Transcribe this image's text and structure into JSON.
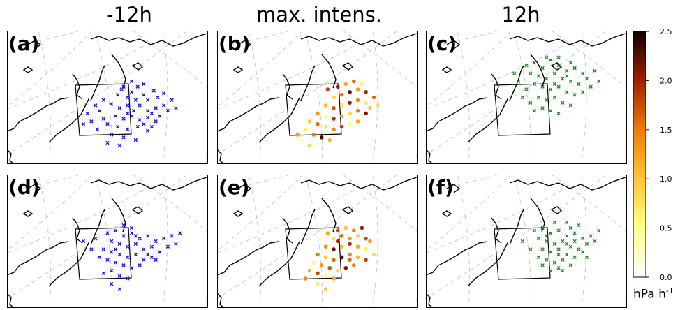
{
  "chart_data": {
    "type": "scatter",
    "column_titles": [
      "-12h",
      "max. intens.",
      "12h"
    ],
    "panels": [
      {
        "label": "(a)",
        "kind": "cross",
        "color": "#1010d8",
        "points": [
          [
            0.55,
            0.48
          ],
          [
            0.57,
            0.44
          ],
          [
            0.6,
            0.5
          ],
          [
            0.62,
            0.46
          ],
          [
            0.65,
            0.42
          ],
          [
            0.68,
            0.48
          ],
          [
            0.7,
            0.52
          ],
          [
            0.73,
            0.45
          ],
          [
            0.75,
            0.5
          ],
          [
            0.78,
            0.47
          ],
          [
            0.52,
            0.55
          ],
          [
            0.56,
            0.58
          ],
          [
            0.6,
            0.56
          ],
          [
            0.63,
            0.6
          ],
          [
            0.66,
            0.56
          ],
          [
            0.7,
            0.6
          ],
          [
            0.74,
            0.58
          ],
          [
            0.78,
            0.56
          ],
          [
            0.8,
            0.6
          ],
          [
            0.54,
            0.64
          ],
          [
            0.58,
            0.66
          ],
          [
            0.62,
            0.64
          ],
          [
            0.66,
            0.67
          ],
          [
            0.7,
            0.65
          ],
          [
            0.74,
            0.68
          ],
          [
            0.5,
            0.7
          ],
          [
            0.55,
            0.72
          ],
          [
            0.6,
            0.74
          ],
          [
            0.65,
            0.72
          ],
          [
            0.7,
            0.75
          ],
          [
            0.46,
            0.6
          ],
          [
            0.48,
            0.66
          ],
          [
            0.52,
            0.78
          ],
          [
            0.58,
            0.8
          ],
          [
            0.64,
            0.82
          ],
          [
            0.42,
            0.68
          ],
          [
            0.45,
            0.74
          ],
          [
            0.5,
            0.84
          ],
          [
            0.56,
            0.86
          ],
          [
            0.68,
            0.4
          ],
          [
            0.62,
            0.38
          ],
          [
            0.58,
            0.42
          ],
          [
            0.72,
            0.62
          ],
          [
            0.76,
            0.64
          ],
          [
            0.82,
            0.52
          ],
          [
            0.84,
            0.58
          ],
          [
            0.48,
            0.52
          ],
          [
            0.44,
            0.56
          ],
          [
            0.4,
            0.62
          ],
          [
            0.38,
            0.7
          ],
          [
            0.6,
            0.62
          ],
          [
            0.64,
            0.52
          ],
          [
            0.68,
            0.7
          ],
          [
            0.72,
            0.72
          ]
        ]
      },
      {
        "label": "(b)",
        "kind": "dot",
        "cmap": true,
        "points": [
          [
            0.55,
            0.44,
            1.8
          ],
          [
            0.6,
            0.42,
            2.1
          ],
          [
            0.64,
            0.4,
            1.2
          ],
          [
            0.68,
            0.38,
            1.6
          ],
          [
            0.72,
            0.4,
            0.6
          ],
          [
            0.58,
            0.5,
            0.9
          ],
          [
            0.62,
            0.48,
            1.5
          ],
          [
            0.66,
            0.46,
            2.2
          ],
          [
            0.7,
            0.44,
            1.3
          ],
          [
            0.74,
            0.46,
            1.9
          ],
          [
            0.54,
            0.56,
            1.1
          ],
          [
            0.58,
            0.58,
            1.7
          ],
          [
            0.62,
            0.56,
            0.8
          ],
          [
            0.66,
            0.54,
            2.0
          ],
          [
            0.7,
            0.52,
            1.4
          ],
          [
            0.74,
            0.54,
            0.7
          ],
          [
            0.78,
            0.5,
            1.6
          ],
          [
            0.5,
            0.62,
            1.3
          ],
          [
            0.54,
            0.64,
            0.5
          ],
          [
            0.58,
            0.66,
            1.9
          ],
          [
            0.62,
            0.64,
            1.2
          ],
          [
            0.66,
            0.62,
            0.9
          ],
          [
            0.7,
            0.6,
            1.5
          ],
          [
            0.74,
            0.62,
            2.1
          ],
          [
            0.46,
            0.68,
            1.0
          ],
          [
            0.5,
            0.7,
            1.6
          ],
          [
            0.54,
            0.72,
            0.8
          ],
          [
            0.58,
            0.74,
            1.4
          ],
          [
            0.62,
            0.72,
            1.8
          ],
          [
            0.66,
            0.7,
            0.6
          ],
          [
            0.7,
            0.68,
            1.2
          ],
          [
            0.44,
            0.74,
            0.7
          ],
          [
            0.48,
            0.78,
            1.5
          ],
          [
            0.52,
            0.8,
            2.3
          ],
          [
            0.56,
            0.82,
            1.1
          ],
          [
            0.42,
            0.82,
            0.4
          ],
          [
            0.46,
            0.86,
            0.9
          ],
          [
            0.4,
            0.78,
            1.3
          ],
          [
            0.76,
            0.58,
            1.0
          ],
          [
            0.8,
            0.56,
            0.8
          ]
        ]
      },
      {
        "label": "(c)",
        "kind": "cross",
        "color": "#138a13",
        "points": [
          [
            0.5,
            0.26
          ],
          [
            0.54,
            0.24
          ],
          [
            0.58,
            0.28
          ],
          [
            0.62,
            0.22
          ],
          [
            0.66,
            0.26
          ],
          [
            0.7,
            0.3
          ],
          [
            0.74,
            0.28
          ],
          [
            0.78,
            0.32
          ],
          [
            0.52,
            0.32
          ],
          [
            0.56,
            0.34
          ],
          [
            0.6,
            0.36
          ],
          [
            0.64,
            0.32
          ],
          [
            0.68,
            0.36
          ],
          [
            0.72,
            0.38
          ],
          [
            0.76,
            0.4
          ],
          [
            0.8,
            0.36
          ],
          [
            0.82,
            0.42
          ],
          [
            0.54,
            0.4
          ],
          [
            0.58,
            0.42
          ],
          [
            0.62,
            0.44
          ],
          [
            0.66,
            0.42
          ],
          [
            0.7,
            0.46
          ],
          [
            0.74,
            0.48
          ],
          [
            0.78,
            0.46
          ],
          [
            0.56,
            0.5
          ],
          [
            0.6,
            0.52
          ],
          [
            0.64,
            0.5
          ],
          [
            0.68,
            0.54
          ],
          [
            0.72,
            0.56
          ],
          [
            0.5,
            0.44
          ],
          [
            0.46,
            0.38
          ],
          [
            0.44,
            0.32
          ],
          [
            0.58,
            0.58
          ],
          [
            0.62,
            0.6
          ],
          [
            0.66,
            0.62
          ],
          [
            0.54,
            0.6
          ],
          [
            0.6,
            0.2
          ],
          [
            0.66,
            0.2
          ],
          [
            0.72,
            0.24
          ],
          [
            0.84,
            0.3
          ],
          [
            0.86,
            0.38
          ],
          [
            0.48,
            0.5
          ],
          [
            0.52,
            0.54
          ],
          [
            0.64,
            0.4
          ],
          [
            0.7,
            0.34
          ]
        ]
      },
      {
        "label": "(d)",
        "kind": "cross",
        "color": "#1010d8",
        "points": [
          [
            0.5,
            0.44
          ],
          [
            0.54,
            0.42
          ],
          [
            0.58,
            0.46
          ],
          [
            0.62,
            0.44
          ],
          [
            0.66,
            0.48
          ],
          [
            0.7,
            0.46
          ],
          [
            0.74,
            0.5
          ],
          [
            0.78,
            0.48
          ],
          [
            0.82,
            0.46
          ],
          [
            0.52,
            0.5
          ],
          [
            0.56,
            0.52
          ],
          [
            0.6,
            0.54
          ],
          [
            0.64,
            0.52
          ],
          [
            0.68,
            0.56
          ],
          [
            0.72,
            0.54
          ],
          [
            0.76,
            0.58
          ],
          [
            0.8,
            0.54
          ],
          [
            0.48,
            0.56
          ],
          [
            0.52,
            0.58
          ],
          [
            0.56,
            0.6
          ],
          [
            0.6,
            0.62
          ],
          [
            0.64,
            0.6
          ],
          [
            0.68,
            0.64
          ],
          [
            0.72,
            0.62
          ],
          [
            0.5,
            0.64
          ],
          [
            0.54,
            0.66
          ],
          [
            0.58,
            0.68
          ],
          [
            0.62,
            0.7
          ],
          [
            0.66,
            0.68
          ],
          [
            0.46,
            0.62
          ],
          [
            0.42,
            0.56
          ],
          [
            0.38,
            0.5
          ],
          [
            0.44,
            0.48
          ],
          [
            0.52,
            0.72
          ],
          [
            0.56,
            0.76
          ],
          [
            0.6,
            0.78
          ],
          [
            0.48,
            0.74
          ],
          [
            0.52,
            0.82
          ],
          [
            0.56,
            0.86
          ],
          [
            0.62,
            0.4
          ],
          [
            0.58,
            0.38
          ],
          [
            0.84,
            0.52
          ],
          [
            0.86,
            0.44
          ],
          [
            0.7,
            0.6
          ],
          [
            0.74,
            0.64
          ],
          [
            0.54,
            0.56
          ],
          [
            0.64,
            0.46
          ]
        ]
      },
      {
        "label": "(e)",
        "kind": "dot",
        "cmap": true,
        "points": [
          [
            0.55,
            0.44,
            1.2
          ],
          [
            0.6,
            0.42,
            1.8
          ],
          [
            0.64,
            0.4,
            1.0
          ],
          [
            0.68,
            0.42,
            1.5
          ],
          [
            0.72,
            0.4,
            2.0
          ],
          [
            0.58,
            0.48,
            0.8
          ],
          [
            0.62,
            0.46,
            1.6
          ],
          [
            0.66,
            0.48,
            1.3
          ],
          [
            0.7,
            0.46,
            0.9
          ],
          [
            0.74,
            0.48,
            1.7
          ],
          [
            0.54,
            0.54,
            1.4
          ],
          [
            0.58,
            0.56,
            2.2
          ],
          [
            0.62,
            0.54,
            1.1
          ],
          [
            0.66,
            0.52,
            1.9
          ],
          [
            0.7,
            0.54,
            1.2
          ],
          [
            0.74,
            0.56,
            0.7
          ],
          [
            0.5,
            0.6,
            1.5
          ],
          [
            0.54,
            0.62,
            1.0
          ],
          [
            0.58,
            0.64,
            1.6
          ],
          [
            0.62,
            0.62,
            2.3
          ],
          [
            0.66,
            0.6,
            1.4
          ],
          [
            0.7,
            0.62,
            1.1
          ],
          [
            0.74,
            0.64,
            1.8
          ],
          [
            0.48,
            0.66,
            0.6
          ],
          [
            0.52,
            0.68,
            1.3
          ],
          [
            0.56,
            0.7,
            1.7
          ],
          [
            0.6,
            0.72,
            0.9
          ],
          [
            0.64,
            0.7,
            2.1
          ],
          [
            0.68,
            0.68,
            1.5
          ],
          [
            0.46,
            0.72,
            1.1
          ],
          [
            0.5,
            0.74,
            1.8
          ],
          [
            0.54,
            0.76,
            0.5
          ],
          [
            0.58,
            0.78,
            1.2
          ],
          [
            0.5,
            0.82,
            0.7
          ],
          [
            0.54,
            0.86,
            1.0
          ],
          [
            0.44,
            0.78,
            1.4
          ],
          [
            0.76,
            0.5,
            1.3
          ],
          [
            0.78,
            0.6,
            0.8
          ],
          [
            0.6,
            0.5,
            2.0
          ],
          [
            0.66,
            0.64,
            1.6
          ]
        ]
      },
      {
        "label": "(f)",
        "kind": "cross",
        "color": "#138a13",
        "points": [
          [
            0.54,
            0.42
          ],
          [
            0.58,
            0.4
          ],
          [
            0.62,
            0.44
          ],
          [
            0.66,
            0.42
          ],
          [
            0.7,
            0.46
          ],
          [
            0.74,
            0.44
          ],
          [
            0.78,
            0.48
          ],
          [
            0.82,
            0.46
          ],
          [
            0.56,
            0.48
          ],
          [
            0.6,
            0.5
          ],
          [
            0.64,
            0.52
          ],
          [
            0.68,
            0.5
          ],
          [
            0.72,
            0.54
          ],
          [
            0.76,
            0.56
          ],
          [
            0.8,
            0.52
          ],
          [
            0.58,
            0.56
          ],
          [
            0.62,
            0.58
          ],
          [
            0.66,
            0.56
          ],
          [
            0.7,
            0.6
          ],
          [
            0.74,
            0.62
          ],
          [
            0.78,
            0.58
          ],
          [
            0.6,
            0.64
          ],
          [
            0.64,
            0.66
          ],
          [
            0.68,
            0.64
          ],
          [
            0.72,
            0.68
          ],
          [
            0.62,
            0.72
          ],
          [
            0.66,
            0.7
          ],
          [
            0.56,
            0.62
          ],
          [
            0.52,
            0.56
          ],
          [
            0.48,
            0.5
          ],
          [
            0.64,
            0.36
          ],
          [
            0.7,
            0.36
          ],
          [
            0.76,
            0.38
          ],
          [
            0.84,
            0.5
          ],
          [
            0.86,
            0.42
          ],
          [
            0.7,
            0.52
          ],
          [
            0.66,
            0.6
          ],
          [
            0.6,
            0.46
          ],
          [
            0.74,
            0.5
          ],
          [
            0.68,
            0.72
          ],
          [
            0.58,
            0.68
          ],
          [
            0.8,
            0.62
          ],
          [
            0.72,
            0.4
          ]
        ]
      }
    ],
    "colorbar": {
      "min": 0.0,
      "max": 2.5,
      "ticks": [
        "0.0",
        "0.5",
        "1.0",
        "1.5",
        "2.0",
        "2.5"
      ],
      "label": "hPa h",
      "label_sup": "-1"
    }
  }
}
